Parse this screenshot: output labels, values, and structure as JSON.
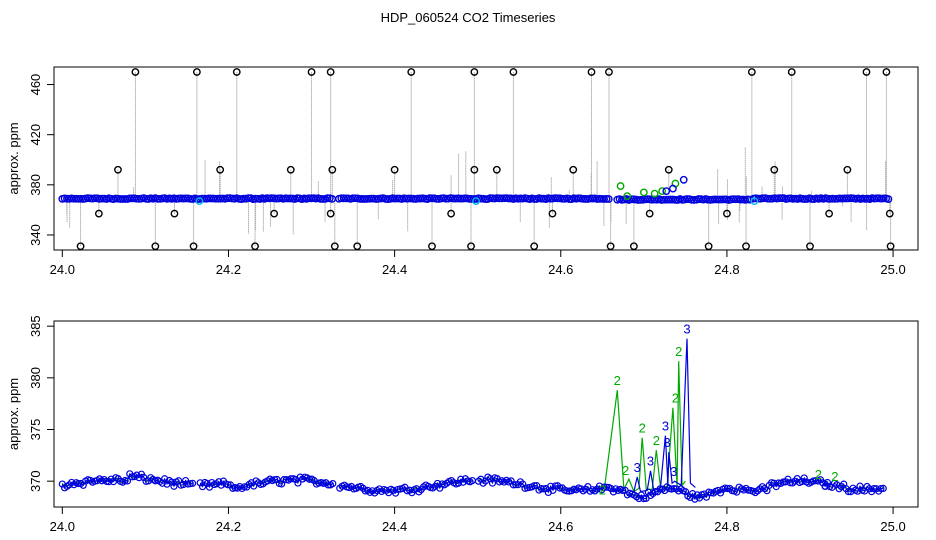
{
  "title": "HDP_060524  CO2 Timeseries",
  "colors": {
    "black": "#000000",
    "blue": "#0000dd",
    "green": "#00aa00",
    "cyan": "#00bbee",
    "drop_line": "#888888"
  },
  "chart_data": [
    {
      "type": "scatter",
      "ylabel": "approx. ppm",
      "xlim": [
        23.99,
        25.03
      ],
      "ylim": [
        328,
        474
      ],
      "x_ticks": [
        "24.0",
        "24.2",
        "24.4",
        "24.6",
        "24.8",
        "25.0"
      ],
      "y_ticks": [
        "340",
        "380",
        "420",
        "460"
      ],
      "baseline": {
        "segments": [
          [
            24.0,
            24.326,
            369.0
          ],
          [
            24.333,
            24.658,
            369.0
          ],
          [
            24.668,
            24.828,
            368.3
          ],
          [
            24.832,
            24.995,
            369.0
          ]
        ]
      },
      "spikes_high": [
        24.088,
        24.162,
        24.21,
        24.3,
        24.323,
        24.42,
        24.496,
        24.543,
        24.637,
        24.658,
        24.83,
        24.878,
        24.968,
        24.992
      ],
      "spikes_low": [
        24.022,
        24.112,
        24.158,
        24.232,
        24.328,
        24.355,
        24.445,
        24.492,
        24.568,
        24.66,
        24.688,
        24.778,
        24.823,
        24.9,
        24.997
      ],
      "mid_high": [
        [
          24.067,
          392
        ],
        [
          24.19,
          392
        ],
        [
          24.275,
          392
        ],
        [
          24.325,
          392
        ],
        [
          24.4,
          392
        ],
        [
          24.496,
          392
        ],
        [
          24.523,
          392
        ],
        [
          24.615,
          392
        ],
        [
          24.73,
          392
        ],
        [
          24.857,
          392
        ],
        [
          24.945,
          392
        ]
      ],
      "mid_low": [
        [
          24.044,
          357
        ],
        [
          24.135,
          357
        ],
        [
          24.255,
          357
        ],
        [
          24.323,
          357
        ],
        [
          24.468,
          357
        ],
        [
          24.59,
          357
        ],
        [
          24.707,
          357
        ],
        [
          24.8,
          357
        ],
        [
          24.923,
          357
        ],
        [
          24.996,
          357
        ]
      ],
      "colored_points": [
        {
          "color": "green",
          "x": 24.672,
          "y": 379
        },
        {
          "color": "green",
          "x": 24.68,
          "y": 371
        },
        {
          "color": "green",
          "x": 24.7,
          "y": 374
        },
        {
          "color": "green",
          "x": 24.713,
          "y": 373
        },
        {
          "color": "green",
          "x": 24.722,
          "y": 375
        },
        {
          "color": "green",
          "x": 24.738,
          "y": 381
        },
        {
          "color": "blue",
          "x": 24.727,
          "y": 375
        },
        {
          "color": "blue",
          "x": 24.735,
          "y": 377
        },
        {
          "color": "blue",
          "x": 24.748,
          "y": 384
        },
        {
          "color": "cyan",
          "x": 24.165,
          "y": 367
        },
        {
          "color": "cyan",
          "x": 24.498,
          "y": 367
        },
        {
          "color": "cyan",
          "x": 24.833,
          "y": 367
        }
      ]
    },
    {
      "type": "line",
      "ylabel": "approx. ppm",
      "xlim": [
        23.99,
        25.03
      ],
      "ylim": [
        367.5,
        385.5
      ],
      "x_ticks": [
        "24.0",
        "24.2",
        "24.4",
        "24.6",
        "24.8",
        "25.0"
      ],
      "y_ticks": [
        "370",
        "375",
        "380",
        "385"
      ],
      "gap_starts": [
        24.158,
        24.328,
        24.495
      ],
      "spike_labels": [
        {
          "text": "2",
          "color": "green",
          "x": 24.668,
          "y": 379.3
        },
        {
          "text": "2",
          "color": "green",
          "x": 24.65,
          "y": 368.7
        },
        {
          "text": "2",
          "color": "green",
          "x": 24.678,
          "y": 370.6
        },
        {
          "text": "2",
          "color": "green",
          "x": 24.698,
          "y": 374.7
        },
        {
          "text": "2",
          "color": "green",
          "x": 24.715,
          "y": 373.5
        },
        {
          "text": "2",
          "color": "green",
          "x": 24.742,
          "y": 382.1
        },
        {
          "text": "2",
          "color": "green",
          "x": 24.738,
          "y": 377.6
        },
        {
          "text": "2",
          "color": "green",
          "x": 24.91,
          "y": 370.2
        },
        {
          "text": "2",
          "color": "green",
          "x": 24.93,
          "y": 370.0
        },
        {
          "text": "3",
          "color": "blue",
          "x": 24.692,
          "y": 370.9
        },
        {
          "text": "3",
          "color": "blue",
          "x": 24.708,
          "y": 371.5
        },
        {
          "text": "3",
          "color": "blue",
          "x": 24.726,
          "y": 374.9
        },
        {
          "text": "3",
          "color": "blue",
          "x": 24.728,
          "y": 373.3
        },
        {
          "text": "3",
          "color": "blue",
          "x": 24.736,
          "y": 370.5
        },
        {
          "text": "3",
          "color": "blue",
          "x": 24.752,
          "y": 384.3
        },
        {
          "text": "3",
          "color": "blue",
          "x": 24.918,
          "y": 369.2
        }
      ]
    }
  ]
}
